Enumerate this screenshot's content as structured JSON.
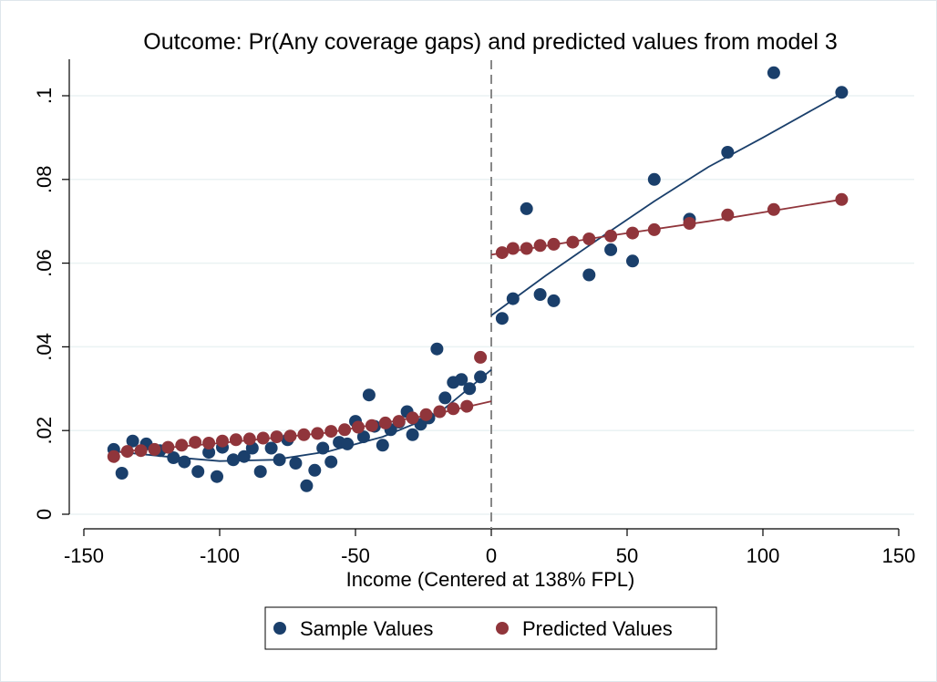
{
  "chart_data": {
    "type": "scatter",
    "title": "Outcome: Pr(Any coverage gaps) and predicted values from model 3",
    "xlabel": "Income (Centered at 138% FPL)",
    "ylabel": "",
    "xlim": [
      -150,
      150
    ],
    "ylim": [
      0,
      0.1
    ],
    "x_ticks": [
      -150,
      -100,
      -50,
      0,
      50,
      100,
      150
    ],
    "x_tick_labels": [
      "-150",
      "-100",
      "-50",
      "0",
      "50",
      "100",
      "150"
    ],
    "y_ticks": [
      0,
      0.02,
      0.04,
      0.06,
      0.08,
      0.1
    ],
    "y_tick_labels": [
      "0",
      ".02",
      ".04",
      ".06",
      ".08",
      ".1"
    ],
    "grid": "horizontal",
    "cutoff_line_x": 0,
    "legend_position": "bottom",
    "colors": {
      "sample": "#1a3f6b",
      "predicted": "#90353b",
      "cutoff": "#888888",
      "grid": "#eaf2f3"
    },
    "series": [
      {
        "name": "Sample Values",
        "x": [
          -139,
          -136,
          -132,
          -127,
          -122,
          -117,
          -113,
          -108,
          -104,
          -101,
          -99,
          -95,
          -91,
          -88,
          -85,
          -81,
          -78,
          -75,
          -72,
          -68,
          -65,
          -62,
          -59,
          -56,
          -53,
          -50,
          -47,
          -45,
          -43,
          -40,
          -37,
          -34,
          -31,
          -29,
          -26,
          -23,
          -20,
          -17,
          -14,
          -11,
          -8,
          -4,
          4,
          8,
          13,
          18,
          23,
          36,
          44,
          52,
          60,
          73,
          87,
          104,
          129
        ],
        "y": [
          0.0155,
          0.0098,
          0.0175,
          0.0168,
          0.0152,
          0.0135,
          0.0125,
          0.0102,
          0.0148,
          0.009,
          0.016,
          0.013,
          0.0138,
          0.0158,
          0.0102,
          0.0158,
          0.013,
          0.0178,
          0.0122,
          0.0068,
          0.0105,
          0.0158,
          0.0125,
          0.0172,
          0.0168,
          0.0222,
          0.0185,
          0.0285,
          0.021,
          0.0165,
          0.0202,
          0.022,
          0.0245,
          0.019,
          0.0215,
          0.023,
          0.0395,
          0.0278,
          0.0315,
          0.0322,
          0.03,
          0.0328,
          0.0468,
          0.0515,
          0.073,
          0.0525,
          0.051,
          0.0572,
          0.0632,
          0.0605,
          0.08,
          0.0705,
          0.0865,
          0.1055,
          0.1008
        ],
        "fit": {
          "left": {
            "x": [
              -139,
              -120,
              -100,
              -80,
              -60,
              -40,
              -20,
              0
            ],
            "y": [
              0.015,
              0.0138,
              0.0127,
              0.013,
              0.015,
              0.0185,
              0.0238,
              0.0345
            ]
          },
          "right": {
            "x": [
              0,
              20,
              40,
              60,
              80,
              100,
              129
            ],
            "y": [
              0.0475,
              0.057,
              0.066,
              0.0748,
              0.083,
              0.09,
              0.1005
            ]
          }
        }
      },
      {
        "name": "Predicted Values",
        "x": [
          -139,
          -134,
          -129,
          -124,
          -119,
          -114,
          -109,
          -104,
          -99,
          -94,
          -89,
          -84,
          -79,
          -74,
          -69,
          -64,
          -59,
          -54,
          -49,
          -44,
          -39,
          -34,
          -29,
          -24,
          -19,
          -14,
          -9,
          -4,
          4,
          8,
          13,
          18,
          23,
          30,
          36,
          44,
          52,
          60,
          73,
          87,
          104,
          129
        ],
        "y": [
          0.0138,
          0.015,
          0.0152,
          0.0155,
          0.016,
          0.0165,
          0.0172,
          0.017,
          0.0175,
          0.0178,
          0.018,
          0.0182,
          0.0185,
          0.0187,
          0.019,
          0.0193,
          0.0198,
          0.0202,
          0.0208,
          0.0212,
          0.0218,
          0.0222,
          0.023,
          0.0238,
          0.0245,
          0.0252,
          0.0258,
          0.0375,
          0.0625,
          0.0635,
          0.0635,
          0.0642,
          0.0645,
          0.065,
          0.0658,
          0.0665,
          0.0672,
          0.068,
          0.0695,
          0.0715,
          0.0728,
          0.0752
        ],
        "fit": {
          "left": {
            "x": [
              -139,
              -100,
              -60,
              -20,
              0
            ],
            "y": [
              0.0148,
              0.017,
              0.0195,
              0.024,
              0.027
            ]
          },
          "right": {
            "x": [
              0,
              40,
              80,
              129
            ],
            "y": [
              0.062,
              0.0662,
              0.07,
              0.0752
            ]
          }
        }
      }
    ]
  }
}
